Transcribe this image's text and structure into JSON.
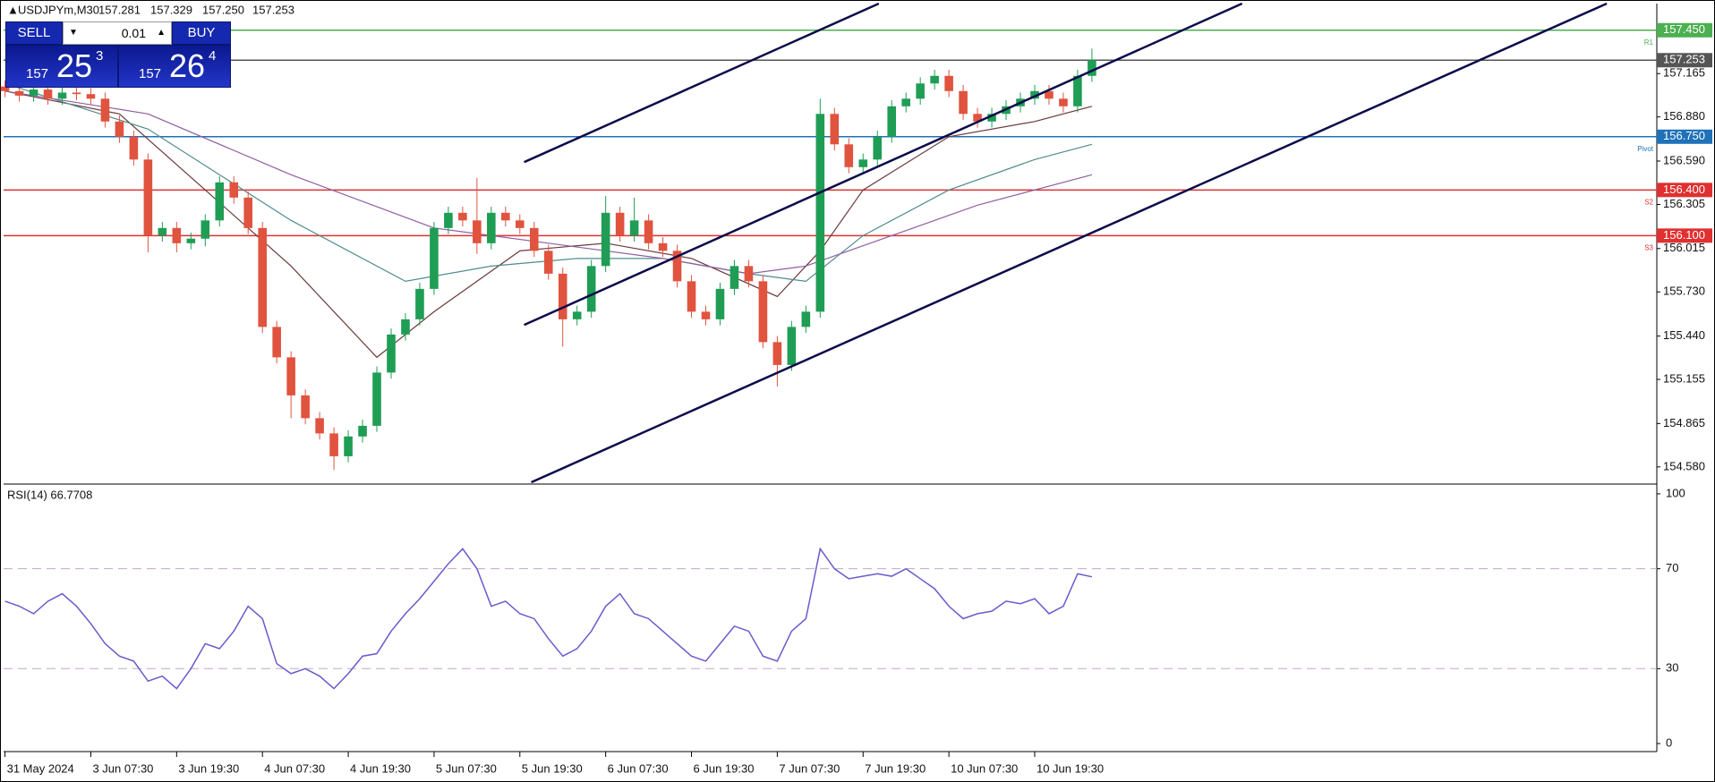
{
  "header": {
    "symbol": "USDJPYm,M30",
    "ohlc": [
      157.281,
      157.329,
      157.25,
      157.253
    ],
    "ohlc_labels": [
      "157.281",
      "157.329",
      "157.250",
      "157.253"
    ]
  },
  "trade": {
    "sell": "SELL",
    "buy": "BUY",
    "lot": "0.01",
    "bid": {
      "figure": "157",
      "pips": "25",
      "point": "3"
    },
    "ask": {
      "figure": "157",
      "pips": "26",
      "point": "4"
    }
  },
  "chart_data": [
    {
      "type": "candlestick",
      "xlim": [
        -0.1,
        115.5
      ],
      "ylim": [
        154.479,
        157.625
      ],
      "xticks": [
        {
          "value": 0,
          "label": "31 May 2024"
        },
        {
          "value": 6,
          "label": "3 Jun 07:30"
        },
        {
          "value": 12,
          "label": "3 Jun 19:30"
        },
        {
          "value": 18,
          "label": "4 Jun 07:30"
        },
        {
          "value": 24,
          "label": "4 Jun 19:30"
        },
        {
          "value": 30,
          "label": "5 Jun 07:30"
        },
        {
          "value": 36,
          "label": "5 Jun 19:30"
        },
        {
          "value": 42,
          "label": "6 Jun 07:30"
        },
        {
          "value": 48,
          "label": "6 Jun 19:30"
        },
        {
          "value": 54,
          "label": "7 Jun 07:30"
        },
        {
          "value": 60,
          "label": "7 Jun 19:30"
        },
        {
          "value": 66,
          "label": "10 Jun 07:30"
        },
        {
          "value": 72,
          "label": "10 Jun 19:30"
        }
      ],
      "yticks": [
        {
          "value": 157.165,
          "label": "157.165"
        },
        {
          "value": 156.88,
          "label": "156.880"
        },
        {
          "value": 156.59,
          "label": "156.590"
        },
        {
          "value": 156.305,
          "label": "156.305"
        },
        {
          "value": 156.015,
          "label": "156.015"
        },
        {
          "value": 155.73,
          "label": "155.730"
        },
        {
          "value": 155.44,
          "label": "155.440"
        },
        {
          "value": 155.155,
          "label": "155.155"
        },
        {
          "value": 154.865,
          "label": "154.865"
        },
        {
          "value": 154.58,
          "label": "154.580"
        }
      ],
      "up_color": "#1f9d55",
      "down_color": "#e0533f",
      "open": [
        157.08,
        157.05,
        157.02,
        157.06,
        157.0,
        157.04,
        157.03,
        157.0,
        156.85,
        156.75,
        156.6,
        156.1,
        156.15,
        156.05,
        156.08,
        156.2,
        156.45,
        156.35,
        156.15,
        155.5,
        155.3,
        155.05,
        154.9,
        154.8,
        154.65,
        154.78,
        154.85,
        155.2,
        155.45,
        155.55,
        155.75,
        156.15,
        156.25,
        156.2,
        156.05,
        156.25,
        156.2,
        156.15,
        156.0,
        155.85,
        155.55,
        155.6,
        155.9,
        156.25,
        156.1,
        156.2,
        156.05,
        156.0,
        155.8,
        155.6,
        155.55,
        155.75,
        155.9,
        155.8,
        155.4,
        155.25,
        155.5,
        155.6,
        156.9,
        156.7,
        156.55,
        156.6,
        156.75,
        156.95,
        157.0,
        157.1,
        157.15,
        157.05,
        156.9,
        156.85,
        156.9,
        156.95,
        157.0,
        157.05,
        157.0,
        156.95,
        157.15
      ],
      "high": [
        157.12,
        157.09,
        157.1,
        157.1,
        157.08,
        157.08,
        157.07,
        157.04,
        156.89,
        156.79,
        156.64,
        156.19,
        156.19,
        156.12,
        156.24,
        156.49,
        156.49,
        156.39,
        156.19,
        155.54,
        155.34,
        155.09,
        154.94,
        154.84,
        154.82,
        154.89,
        155.24,
        155.49,
        155.59,
        155.79,
        156.19,
        156.29,
        156.29,
        156.48,
        156.29,
        156.29,
        156.24,
        156.19,
        156.04,
        155.89,
        155.64,
        155.94,
        156.36,
        156.29,
        156.35,
        156.24,
        156.09,
        156.04,
        155.84,
        155.64,
        155.79,
        155.94,
        155.94,
        155.84,
        155.44,
        155.54,
        155.64,
        157.0,
        156.94,
        156.74,
        156.64,
        156.79,
        156.99,
        157.04,
        157.14,
        157.19,
        157.19,
        157.09,
        156.94,
        156.94,
        156.99,
        157.04,
        157.09,
        157.09,
        157.04,
        157.19,
        157.329
      ],
      "low": [
        157.01,
        156.98,
        156.98,
        156.96,
        156.96,
        156.99,
        156.96,
        156.81,
        156.71,
        156.56,
        155.99,
        156.06,
        155.99,
        156.01,
        156.03,
        156.16,
        156.31,
        156.11,
        155.46,
        155.26,
        154.9,
        154.86,
        154.76,
        154.56,
        154.61,
        154.74,
        154.81,
        155.16,
        155.41,
        155.51,
        155.71,
        156.11,
        156.16,
        155.98,
        156.01,
        156.16,
        156.11,
        155.96,
        155.81,
        155.37,
        155.51,
        155.56,
        155.86,
        156.06,
        156.06,
        156.01,
        155.96,
        155.76,
        155.56,
        155.51,
        155.51,
        155.71,
        155.76,
        155.36,
        155.11,
        155.21,
        155.46,
        155.56,
        156.66,
        156.51,
        156.51,
        156.56,
        156.71,
        156.91,
        156.96,
        157.06,
        157.01,
        156.86,
        156.81,
        156.81,
        156.86,
        156.91,
        156.96,
        156.96,
        156.91,
        156.91,
        157.11
      ],
      "close": [
        157.05,
        157.02,
        157.06,
        157.0,
        157.04,
        157.03,
        157.0,
        156.85,
        156.75,
        156.6,
        156.1,
        156.15,
        156.05,
        156.08,
        156.2,
        156.45,
        156.35,
        156.15,
        155.5,
        155.3,
        155.05,
        154.9,
        154.8,
        154.65,
        154.78,
        154.85,
        155.2,
        155.45,
        155.55,
        155.75,
        156.15,
        156.25,
        156.2,
        156.05,
        156.25,
        156.2,
        156.15,
        156.0,
        155.85,
        155.55,
        155.6,
        155.9,
        156.25,
        156.1,
        156.2,
        156.05,
        156.0,
        155.8,
        155.6,
        155.55,
        155.75,
        155.9,
        155.8,
        155.4,
        155.25,
        155.5,
        155.6,
        156.9,
        156.7,
        156.55,
        156.6,
        156.75,
        156.95,
        157.0,
        157.1,
        157.15,
        157.05,
        156.9,
        156.85,
        156.9,
        156.95,
        157.0,
        157.05,
        157.0,
        156.95,
        157.15,
        157.253
      ],
      "lines": [
        {
          "color": "#6b3a3a",
          "x": [
            0,
            8,
            14,
            20,
            26,
            30,
            36,
            42,
            48,
            54,
            57,
            60,
            66,
            72,
            76
          ],
          "values": [
            157.05,
            156.9,
            156.4,
            155.9,
            155.3,
            155.6,
            156.0,
            156.05,
            155.95,
            155.7,
            156.0,
            156.4,
            156.75,
            156.85,
            156.95
          ]
        },
        {
          "color": "#4f8c8c",
          "x": [
            0,
            10,
            20,
            28,
            34,
            40,
            46,
            52,
            56,
            60,
            66,
            72,
            76
          ],
          "values": [
            157.1,
            156.8,
            156.2,
            155.8,
            155.9,
            155.95,
            155.95,
            155.85,
            155.8,
            156.1,
            156.4,
            156.6,
            156.7
          ]
        },
        {
          "color": "#8e5fa0",
          "x": [
            0,
            10,
            20,
            30,
            38,
            46,
            52,
            56,
            62,
            68,
            76
          ],
          "values": [
            157.05,
            156.9,
            156.5,
            156.15,
            156.05,
            155.95,
            155.85,
            155.9,
            156.1,
            156.3,
            156.5
          ]
        }
      ],
      "channels": [
        {
          "color": "#0b0b4a",
          "x": [
            36.3,
            61.1
          ],
          "values": [
            156.583,
            157.625
          ]
        },
        {
          "color": "#0b0b4a",
          "x": [
            36.3,
            86.5
          ],
          "values": [
            155.513,
            157.625
          ]
        },
        {
          "color": "#0b0b4a",
          "x": [
            36.8,
            112.0
          ],
          "values": [
            154.479,
            157.625
          ]
        }
      ],
      "levels": [
        {
          "value": 157.45,
          "label": "157.450",
          "color": "#4caf50",
          "tag": "R1"
        },
        {
          "value": 157.253,
          "label": "157.253",
          "color": "#555555"
        },
        {
          "value": 156.75,
          "label": "156.750",
          "color": "#1f72b8",
          "tag": "Pivot"
        },
        {
          "value": 156.4,
          "label": "156.400",
          "color": "#e03030",
          "tag": "S2"
        },
        {
          "value": 156.1,
          "label": "156.100",
          "color": "#e03030",
          "tag": "S3"
        }
      ]
    },
    {
      "type": "line",
      "title": "RSI(14) 66.7708",
      "color": "#6a5acd",
      "xlim": [
        -0.1,
        115.5
      ],
      "ylim": [
        -2.5,
        103.2
      ],
      "yticks": [
        100,
        70,
        30,
        0
      ],
      "levels": [
        70,
        30
      ],
      "values": [
        57,
        55,
        52,
        57,
        60,
        55,
        48,
        40,
        35,
        33,
        25,
        27,
        22,
        30,
        40,
        38,
        45,
        55,
        50,
        32,
        28,
        30,
        27,
        22,
        28,
        35,
        36,
        45,
        52,
        58,
        65,
        72,
        78,
        70,
        55,
        57,
        52,
        50,
        42,
        35,
        38,
        45,
        55,
        60,
        52,
        50,
        45,
        40,
        35,
        33,
        40,
        47,
        45,
        35,
        33,
        45,
        50,
        78,
        70,
        66,
        67,
        68,
        67,
        70,
        66,
        62,
        55,
        50,
        52,
        53,
        57,
        56,
        58,
        52,
        55,
        68,
        66.7708
      ]
    }
  ]
}
